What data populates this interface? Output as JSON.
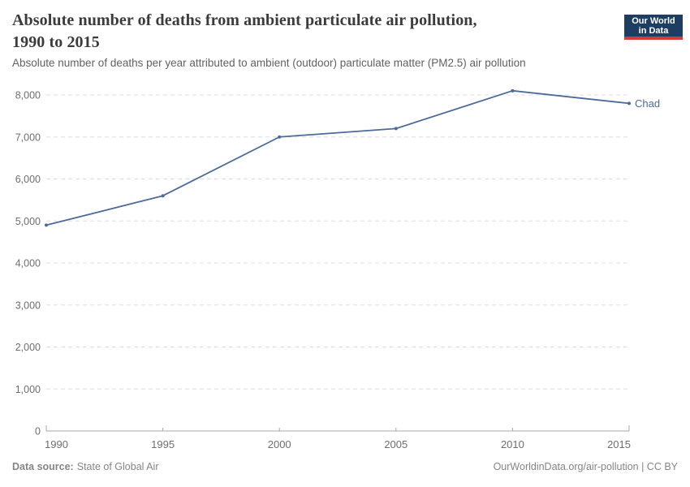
{
  "header": {
    "title_lines": [
      "Absolute number of deaths from ambient particulate air pollution,",
      "1990 to 2015"
    ],
    "subtitle": "Absolute number of deaths per year attributed to ambient (outdoor) particulate matter (PM2.5) air pollution",
    "logo": {
      "line1": "Our World",
      "line2": "in Data",
      "bg_color": "#1d3d63",
      "accent_color": "#d73c34"
    }
  },
  "chart_data": {
    "type": "line",
    "title": "Absolute number of deaths from ambient particulate air pollution, 1990 to 2015",
    "subtitle": "Absolute number of deaths per year attributed to ambient (outdoor) particulate matter (PM2.5) air pollution",
    "x": [
      1990,
      1995,
      2000,
      2005,
      2010,
      2015
    ],
    "x_tick_labels": [
      "1990",
      "1995",
      "2000",
      "2005",
      "2010",
      "2015"
    ],
    "series": [
      {
        "name": "Chad",
        "values": [
          4900,
          5600,
          7000,
          7200,
          8100,
          7800
        ],
        "color": "#4C6A9C"
      }
    ],
    "ylim": [
      0,
      8000
    ],
    "ytick_values": [
      0,
      1000,
      2000,
      3000,
      4000,
      5000,
      6000,
      7000,
      8000
    ],
    "ytick_labels": [
      "0",
      "1,000",
      "2,000",
      "3,000",
      "4,000",
      "5,000",
      "6,000",
      "7,000",
      "8,000"
    ],
    "xlabel": "",
    "ylabel": "",
    "grid": true,
    "legend_position": "end-of-line"
  },
  "colors": {
    "line": "#4C6A9C",
    "grid": "#dedede",
    "axis": "#a8a8a8",
    "tick_label": "#6e6e6e"
  },
  "footer": {
    "datasource_label": "Data source:",
    "datasource_value": "State of Global Air",
    "attribution": "OurWorldinData.org/air-pollution | CC BY"
  }
}
